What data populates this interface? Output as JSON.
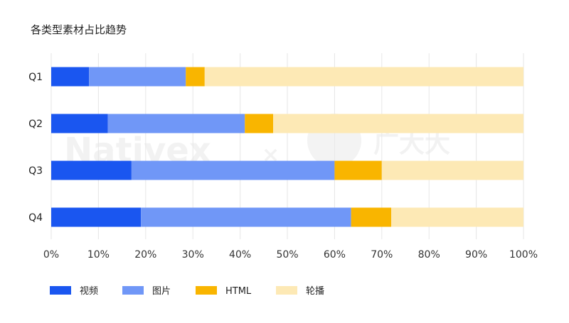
{
  "chart_data": {
    "type": "bar",
    "orientation": "horizontal",
    "stacked": true,
    "title": "各类型素材占比趋势",
    "categories": [
      "Q1",
      "Q2",
      "Q3",
      "Q4"
    ],
    "series": [
      {
        "name": "视频",
        "color": "#1a56f0",
        "values": [
          8,
          12,
          17,
          19
        ]
      },
      {
        "name": "图片",
        "color": "#7097f7",
        "values": [
          20.5,
          29,
          43,
          44.5
        ]
      },
      {
        "name": "HTML",
        "color": "#f9b500",
        "values": [
          4,
          6,
          10,
          8.5
        ]
      },
      {
        "name": "轮播",
        "color": "#fde9b5",
        "values": [
          67.5,
          53,
          30,
          28
        ]
      }
    ],
    "xlim": [
      0,
      100
    ],
    "x_ticks": [
      "0%",
      "10%",
      "20%",
      "30%",
      "40%",
      "50%",
      "60%",
      "70%",
      "80%",
      "90%",
      "100%"
    ],
    "xlabel": "",
    "ylabel": "",
    "grid": true,
    "legend_position": "bottom-left"
  }
}
